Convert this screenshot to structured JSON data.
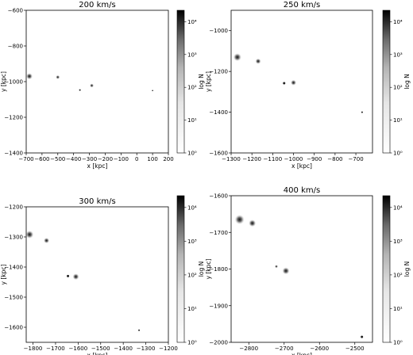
{
  "chart_data": [
    {
      "type": "scatter",
      "title": "200 km/s",
      "xlabel": "x [kpc]",
      "ylabel": "y [kpc]",
      "colorbar_label": "log N",
      "xlim": [
        -700,
        200
      ],
      "ylim": [
        -1400,
        -600
      ],
      "xticks": [
        -700,
        -600,
        -500,
        -400,
        -300,
        -200,
        -100,
        0,
        100,
        200
      ],
      "xtick_labels": [
        "−700",
        "−600",
        "−500",
        "−400",
        "−300",
        "−200",
        "−100",
        "0",
        "100",
        "200"
      ],
      "yticks": [
        -1400,
        -1200,
        -1000,
        -800,
        -600
      ],
      "ytick_labels": [
        "−1400",
        "−1200",
        "−1000",
        "−800",
        "−600"
      ],
      "colorbar_ticks": [
        "10⁰",
        "10¹",
        "10²",
        "10³",
        "10⁴"
      ],
      "points": [
        {
          "x": -680,
          "y": -970,
          "r": 4
        },
        {
          "x": -500,
          "y": -975,
          "r": 2.5
        },
        {
          "x": -285,
          "y": -1022,
          "r": 2.5
        },
        {
          "x": -360,
          "y": -1047,
          "r": 1
        },
        {
          "x": 100,
          "y": -1050,
          "r": 0.8
        }
      ]
    },
    {
      "type": "scatter",
      "title": "250 km/s",
      "xlabel": "x [kpc]",
      "ylabel": "y [kpc]",
      "colorbar_label": "log N",
      "xlim": [
        -1300,
        -620
      ],
      "ylim": [
        -1600,
        -900
      ],
      "xticks": [
        -1300,
        -1200,
        -1100,
        -1000,
        -900,
        -800,
        -700
      ],
      "xtick_labels": [
        "−1300",
        "−1200",
        "−1100",
        "−1000",
        "−900",
        "−800",
        "−700"
      ],
      "yticks": [
        -1600,
        -1400,
        -1200,
        -1000
      ],
      "ytick_labels": [
        "−1600",
        "−1400",
        "−1200",
        "−1000"
      ],
      "colorbar_ticks": [
        "10⁰",
        "10¹",
        "10²",
        "10³",
        "10⁴"
      ],
      "points": [
        {
          "x": -1270,
          "y": -1130,
          "r": 5
        },
        {
          "x": -1170,
          "y": -1150,
          "r": 3.5
        },
        {
          "x": -1000,
          "y": -1255,
          "r": 3.5
        },
        {
          "x": -1045,
          "y": -1258,
          "r": 1.5
        },
        {
          "x": -670,
          "y": -1400,
          "r": 1
        }
      ]
    },
    {
      "type": "scatter",
      "title": "300 km/s",
      "xlabel": "x [kpc]",
      "ylabel": "y [kpc]",
      "colorbar_label": "log N",
      "xlim": [
        -1830,
        -1200
      ],
      "ylim": [
        -1650,
        -1200
      ],
      "xticks": [
        -1800,
        -1700,
        -1600,
        -1500,
        -1400,
        -1300,
        -1200
      ],
      "xtick_labels": [
        "−1800",
        "−1700",
        "−1600",
        "−1500",
        "−1400",
        "−1300",
        "−1200"
      ],
      "yticks": [
        -1600,
        -1500,
        -1400,
        -1300,
        -1200
      ],
      "ytick_labels": [
        "−1600",
        "−1500",
        "−1400",
        "−1300",
        "−1200"
      ],
      "colorbar_ticks": [
        "10⁰",
        "10¹",
        "10²",
        "10³",
        "10⁴"
      ],
      "points": [
        {
          "x": -1815,
          "y": -1292,
          "r": 5
        },
        {
          "x": -1740,
          "y": -1312,
          "r": 3.5
        },
        {
          "x": -1610,
          "y": -1432,
          "r": 4
        },
        {
          "x": -1645,
          "y": -1430,
          "r": 1.5
        },
        {
          "x": -1330,
          "y": -1610,
          "r": 1
        }
      ]
    },
    {
      "type": "scatter",
      "title": "400 km/s",
      "xlabel": "x [kpc]",
      "ylabel": "y [kpc]",
      "colorbar_label": "log N",
      "xlim": [
        -2850,
        -2450
      ],
      "ylim": [
        -2000,
        -1600
      ],
      "xticks": [
        -2800,
        -2700,
        -2600,
        -2500
      ],
      "xtick_labels": [
        "−2800",
        "−2700",
        "−2600",
        "−2500"
      ],
      "yticks": [
        -2000,
        -1900,
        -1800,
        -1700,
        -1600
      ],
      "ytick_labels": [
        "−2000",
        "−1900",
        "−1800",
        "−1700",
        "−1600"
      ],
      "colorbar_ticks": [
        "10⁰",
        "10¹",
        "10²",
        "10³",
        "10⁴"
      ],
      "points": [
        {
          "x": -2826,
          "y": -1665,
          "r": 6
        },
        {
          "x": -2790,
          "y": -1675,
          "r": 4.5
        },
        {
          "x": -2695,
          "y": -1805,
          "r": 4.5
        },
        {
          "x": -2722,
          "y": -1793,
          "r": 2
        },
        {
          "x": -2480,
          "y": -1985,
          "r": 1.5
        }
      ]
    }
  ]
}
